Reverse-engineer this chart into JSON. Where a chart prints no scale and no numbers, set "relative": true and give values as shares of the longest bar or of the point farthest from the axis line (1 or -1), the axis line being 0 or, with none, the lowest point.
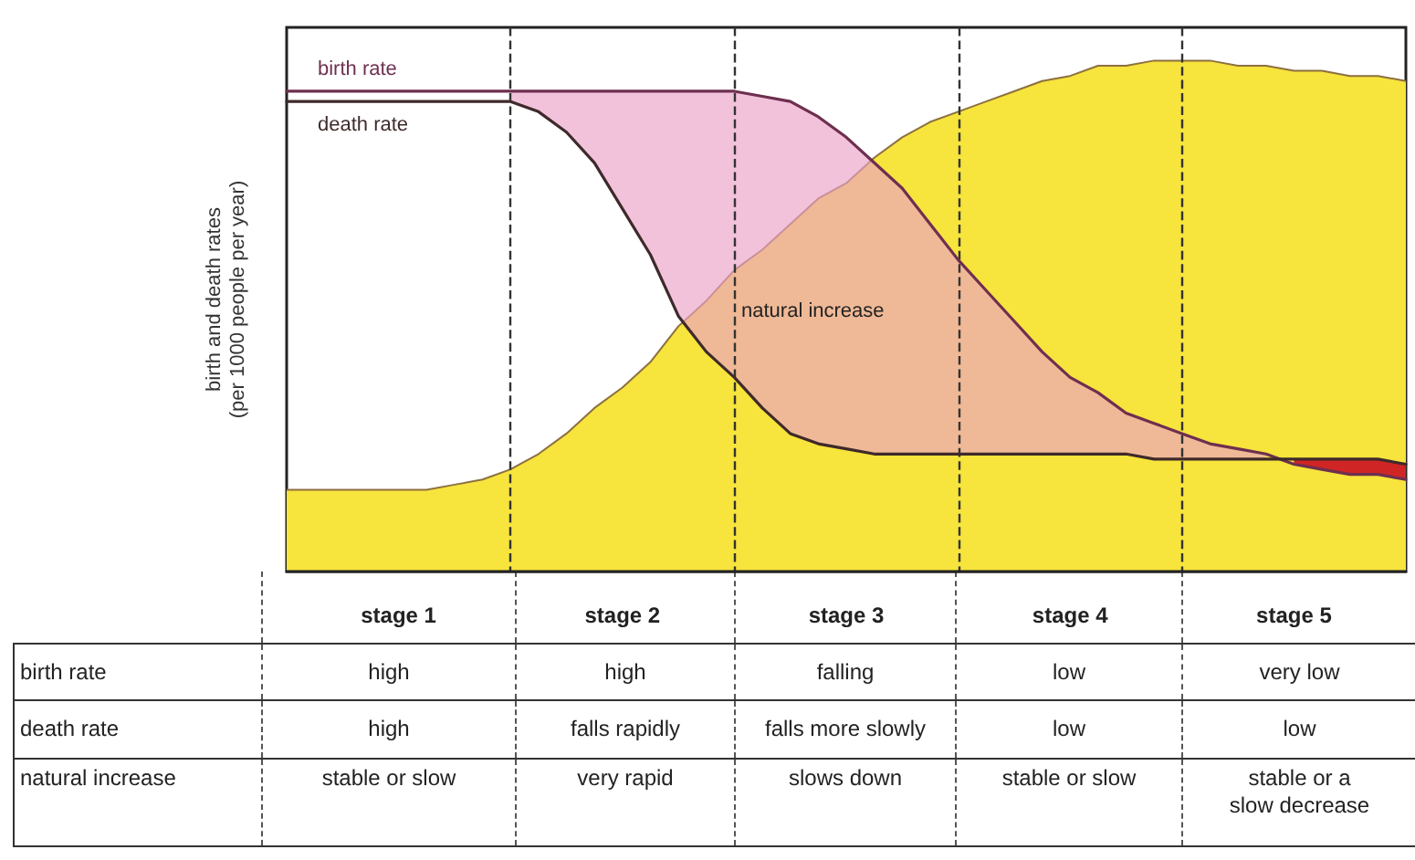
{
  "chart_data": [
    {
      "type": "line",
      "relative": true,
      "grid": "x",
      "ylabel": "birth and death rates\n(per 1000 people per year)",
      "categories": [
        null,
        null,
        null,
        null,
        "stage 1",
        null,
        null,
        null,
        null,
        null,
        null,
        null,
        "stage 2",
        null,
        null,
        null,
        null,
        null,
        null,
        null,
        "stage 3",
        null,
        null,
        null,
        null,
        null,
        null,
        null,
        "stage 4",
        null,
        null,
        null,
        null,
        null,
        null,
        null,
        "stage 5",
        null,
        null,
        null,
        null
      ],
      "series": [
        {
          "type": "area",
          "color": "#f7e43c",
          "values": [
            0.16,
            0.16,
            0.16,
            0.16,
            0.16,
            0.16,
            0.17,
            0.18,
            0.2,
            0.23,
            0.27,
            0.32,
            0.36,
            0.41,
            0.48,
            0.53,
            0.59,
            0.63,
            0.68,
            0.73,
            0.76,
            0.81,
            0.85,
            0.88,
            0.9,
            0.92,
            0.94,
            0.96,
            0.97,
            0.99,
            0.99,
            1,
            1,
            1,
            0.99,
            0.99,
            0.98,
            0.98,
            0.97,
            0.97,
            0.96
          ]
        },
        {
          "name": "birth rate",
          "type": "line",
          "color": "#6e2f4f",
          "values": [
            0.94,
            0.94,
            0.94,
            0.94,
            0.94,
            0.94,
            0.94,
            0.94,
            0.94,
            0.94,
            0.94,
            0.94,
            0.94,
            0.94,
            0.94,
            0.94,
            0.94,
            0.93,
            0.92,
            0.89,
            0.85,
            0.8,
            0.75,
            0.68,
            0.61,
            0.55,
            0.49,
            0.43,
            0.38,
            0.35,
            0.31,
            0.29,
            0.27,
            0.25,
            0.24,
            0.23,
            0.21,
            0.2,
            0.19,
            0.19,
            0.18
          ],
          "lower": [
            null,
            null,
            null,
            null,
            null,
            null,
            null,
            null,
            0.92,
            0.9,
            0.86,
            0.8,
            0.71,
            0.62,
            0.5,
            0.43,
            0.38,
            0.32,
            0.27,
            0.25,
            0.24,
            0.23,
            0.23,
            0.23,
            0.23,
            0.23,
            0.23,
            0.23,
            0.23,
            0.23,
            0.23,
            0.22,
            0.22,
            0.22,
            0.22,
            0.22,
            null,
            null,
            null,
            null,
            null
          ],
          "upper": [
            null,
            null,
            null,
            null,
            null,
            null,
            null,
            null,
            0.94,
            0.94,
            0.94,
            0.94,
            0.94,
            0.94,
            0.94,
            0.94,
            0.94,
            0.93,
            0.92,
            0.89,
            0.85,
            0.8,
            0.75,
            0.68,
            0.61,
            0.55,
            0.49,
            0.43,
            0.38,
            0.35,
            0.31,
            0.29,
            0.27,
            0.25,
            0.24,
            0.23,
            null,
            null,
            null,
            null,
            null
          ]
        },
        {
          "name": "death rate",
          "type": "line",
          "color": "#3e2a2a",
          "values": [
            0.92,
            0.92,
            0.92,
            0.92,
            0.92,
            0.92,
            0.92,
            0.92,
            0.92,
            0.9,
            0.86,
            0.8,
            0.71,
            0.62,
            0.5,
            0.43,
            0.38,
            0.32,
            0.27,
            0.25,
            0.24,
            0.23,
            0.23,
            0.23,
            0.23,
            0.23,
            0.23,
            0.23,
            0.23,
            0.23,
            0.23,
            0.22,
            0.22,
            0.22,
            0.22,
            0.22,
            0.22,
            0.22,
            0.22,
            0.22,
            0.21
          ],
          "lower": [
            null,
            null,
            null,
            null,
            null,
            null,
            null,
            null,
            null,
            null,
            null,
            null,
            null,
            null,
            null,
            null,
            null,
            null,
            null,
            null,
            null,
            null,
            null,
            null,
            null,
            null,
            null,
            null,
            null,
            null,
            null,
            null,
            null,
            null,
            null,
            null,
            0.21,
            0.2,
            0.19,
            0.19,
            0.18
          ],
          "upper": [
            null,
            null,
            null,
            null,
            null,
            null,
            null,
            null,
            null,
            null,
            null,
            null,
            null,
            null,
            null,
            null,
            null,
            null,
            null,
            null,
            null,
            null,
            null,
            null,
            null,
            null,
            null,
            null,
            null,
            null,
            null,
            null,
            null,
            null,
            null,
            null,
            0.22,
            0.22,
            0.22,
            0.22,
            0.21
          ]
        }
      ],
      "annotations": [
        "natural increase"
      ]
    },
    {
      "type": "other",
      "y_categories": [
        "birth rate",
        "death rate",
        "natural increase"
      ],
      "cell_labels": [
        [
          "high",
          "high",
          "falling",
          "low",
          "very low"
        ],
        [
          "high",
          "falls rapidly",
          "falls more slowly",
          "low",
          "low"
        ],
        [
          "stable or slow",
          "very rapid",
          "slows down",
          "stable or slow",
          "stable or a\nslow decrease"
        ]
      ]
    }
  ]
}
